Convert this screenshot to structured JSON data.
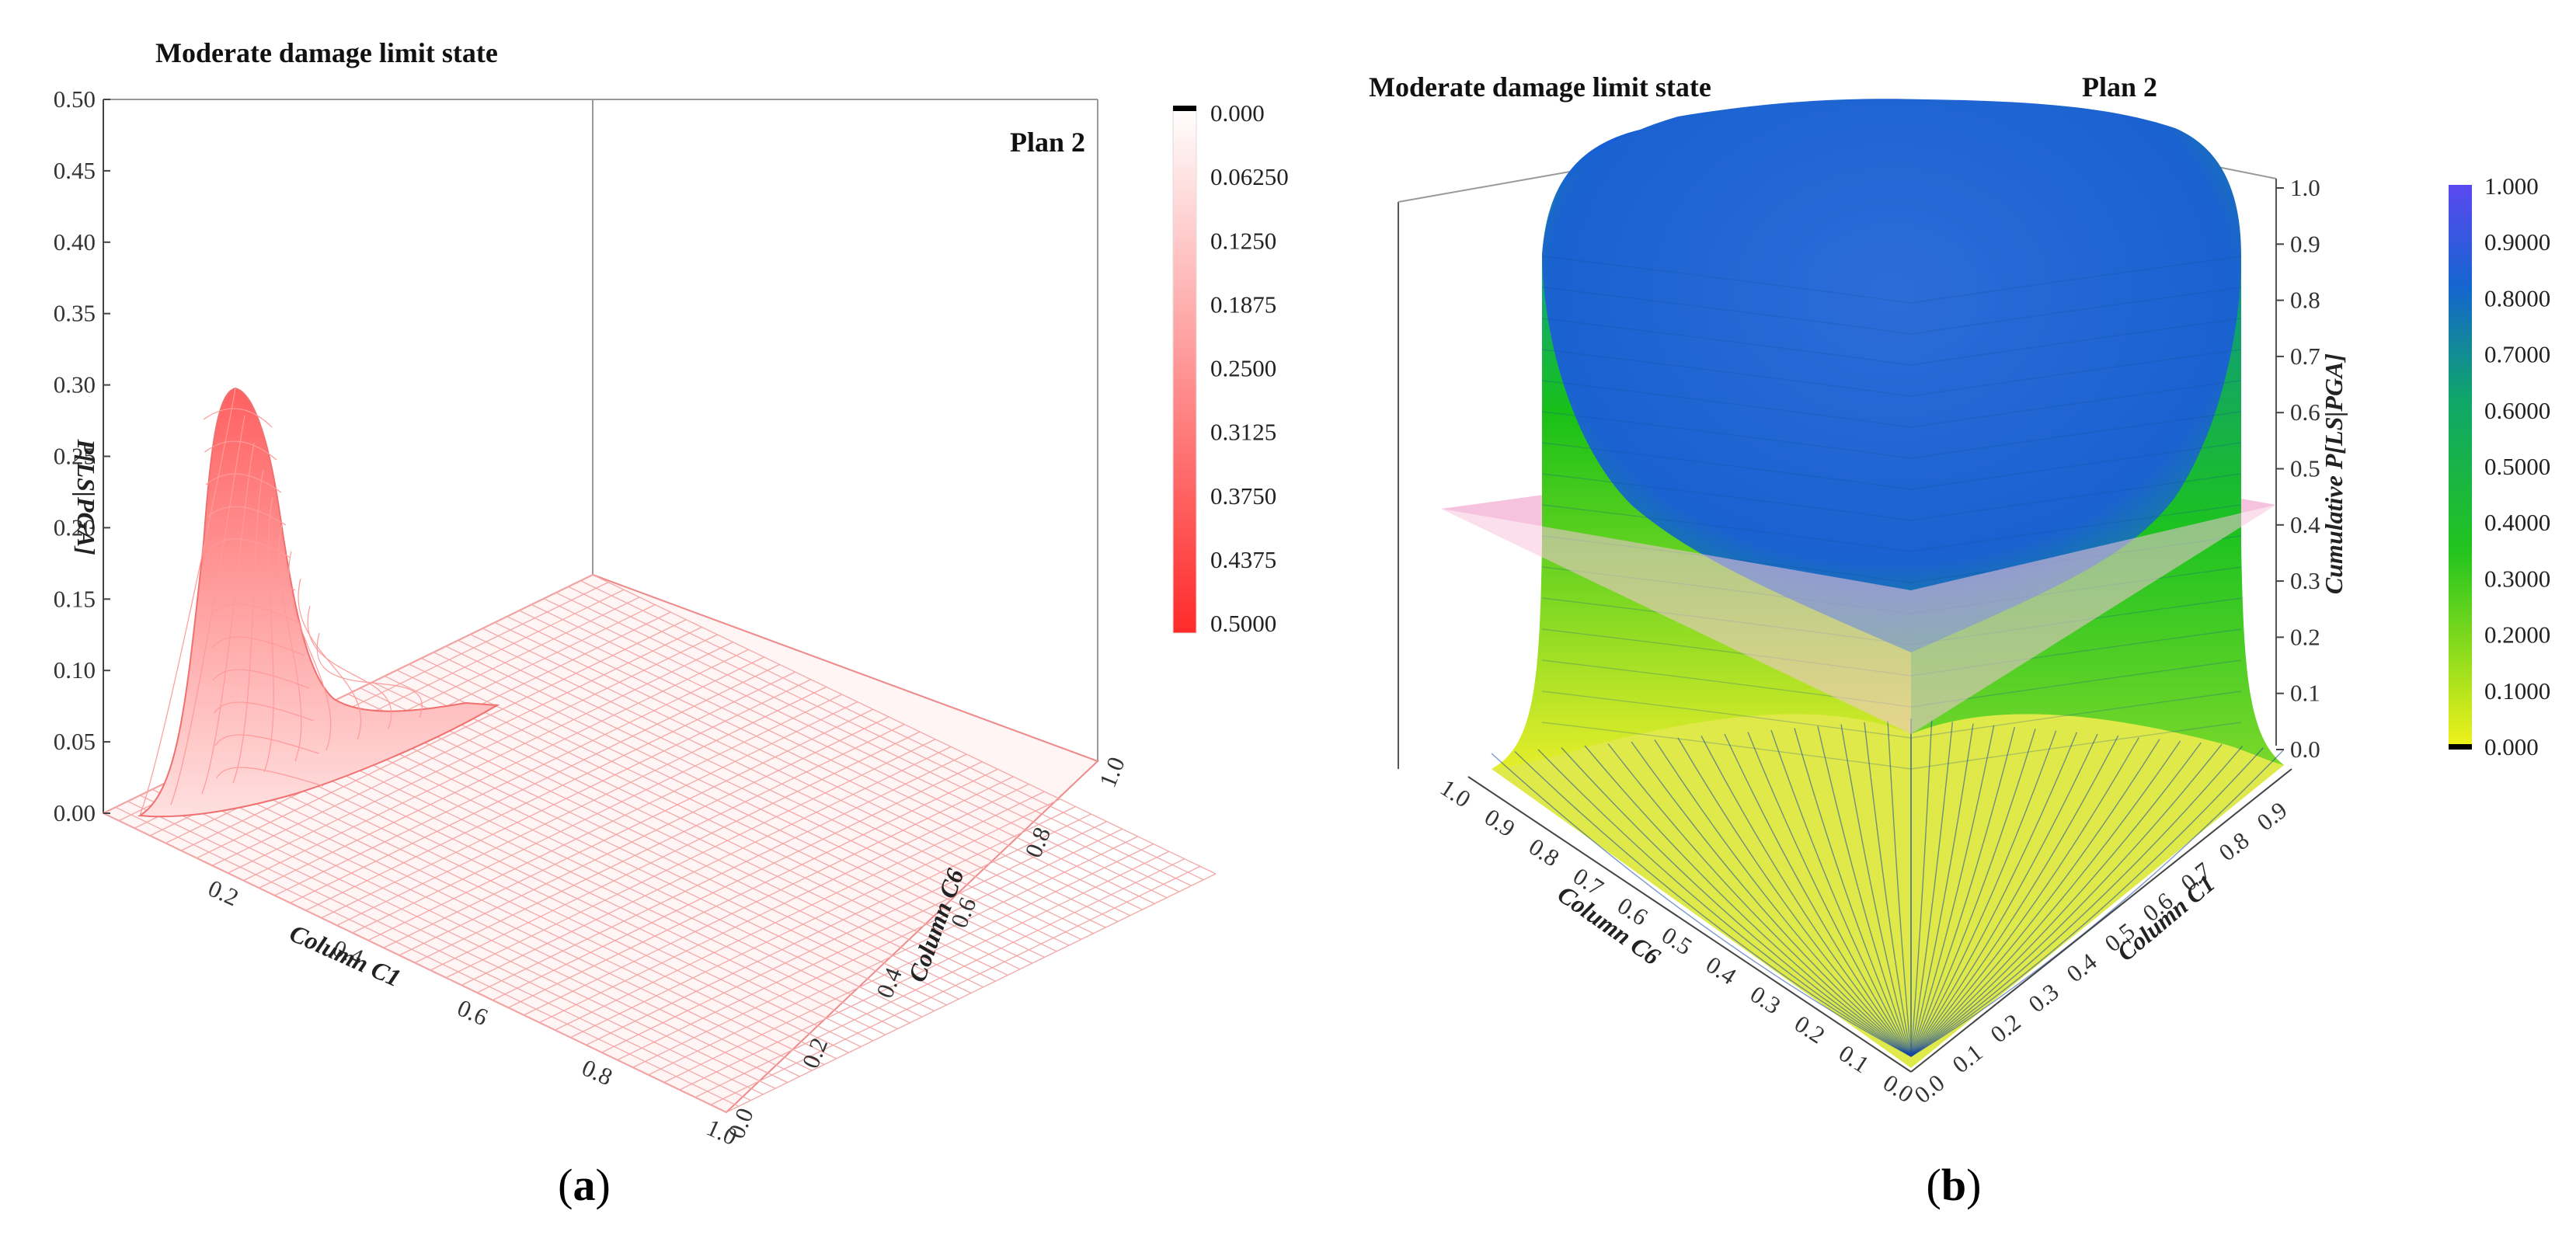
{
  "chart_data": [
    {
      "panel": "(a)",
      "type": "surface",
      "title": "Moderate damage limit state",
      "annotation": "Plan 2",
      "xlabel": "Column C1",
      "ylabel": "Column C6",
      "zlabel": "P[LS|PGA]",
      "xticks": [
        "0.2",
        "0.4",
        "0.6",
        "0.8",
        "1.0"
      ],
      "yticks": [
        "0.0",
        "0.2",
        "0.4",
        "0.6",
        "0.8",
        "1.0"
      ],
      "zticks": [
        "0.00",
        "0.05",
        "0.10",
        "0.15",
        "0.20",
        "0.25",
        "0.30",
        "0.35",
        "0.40",
        "0.45",
        "0.50"
      ],
      "xlim": [
        0,
        1
      ],
      "ylim": [
        0,
        1
      ],
      "zlim": [
        0,
        0.5
      ],
      "peak": {
        "x": 0.18,
        "y": 0.0,
        "z": 0.31
      },
      "colorbar": {
        "labels": [
          "0.000",
          "0.06250",
          "0.1250",
          "0.1875",
          "0.2500",
          "0.3125",
          "0.3750",
          "0.4375",
          "0.5000"
        ],
        "range": [
          0,
          0.5
        ],
        "colors": [
          "#ffffff",
          "#ff2a2a"
        ],
        "end_cap": "#000000"
      },
      "series": [
        {
          "values_x": [
            0.0,
            0.1,
            0.15,
            0.18,
            0.22,
            0.3,
            0.4,
            0.6,
            0.8,
            1.0
          ],
          "values_z": [
            0.02,
            0.12,
            0.26,
            0.31,
            0.27,
            0.12,
            0.04,
            0.005,
            0.0,
            0.0
          ]
        }
      ]
    },
    {
      "panel": "(b)",
      "type": "surface",
      "title": "Moderate damage limit state",
      "annotation": "Plan 2",
      "xlabel": "Column C6",
      "ylabel": "Column C1",
      "zlabel": "Cumulative P[LS|PGA]",
      "xticks": [
        "0.0",
        "0.1",
        "0.2",
        "0.3",
        "0.4",
        "0.5",
        "0.6",
        "0.7",
        "0.8",
        "0.9",
        "1.0"
      ],
      "yticks": [
        "0.0",
        "0.1",
        "0.2",
        "0.3",
        "0.4",
        "0.5",
        "0.6",
        "0.7",
        "0.8",
        "0.9"
      ],
      "zticks": [
        "0.0",
        "0.1",
        "0.2",
        "0.3",
        "0.4",
        "0.5",
        "0.6",
        "0.7",
        "0.8",
        "0.9",
        "1.0"
      ],
      "xlim": [
        0,
        1
      ],
      "ylim": [
        0,
        1
      ],
      "zlim": [
        0,
        1
      ],
      "reference_plane": 0.5,
      "colorbar": {
        "labels": [
          "1.000",
          "0.9000",
          "0.8000",
          "0.7000",
          "0.6000",
          "0.5000",
          "0.4000",
          "0.3000",
          "0.2000",
          "0.1000",
          "0.000"
        ],
        "range": [
          0,
          1
        ],
        "colors": [
          "#f0f020",
          "#18c018",
          "#1565d0",
          "#5a48f0"
        ],
        "end_cap": "#000000"
      }
    }
  ],
  "captions": {
    "a_open": "(",
    "a_letter": "a",
    "a_close": ")",
    "b_open": "(",
    "b_letter": "b",
    "b_close": ")"
  }
}
